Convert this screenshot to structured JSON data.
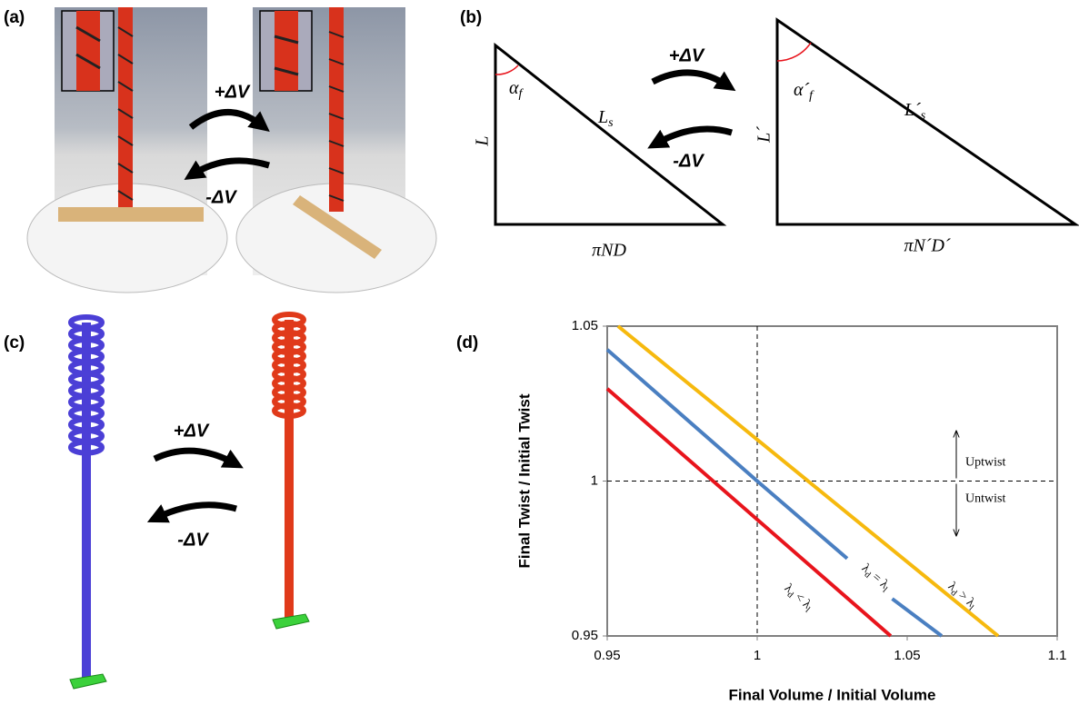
{
  "figure": {
    "panels": [
      "(a)",
      "(b)",
      "(c)",
      "(d)"
    ],
    "plus": "+ΔV",
    "minus": "-ΔV",
    "triangle1": {
      "angle": [
        "α",
        "f"
      ],
      "hyp": [
        "L",
        "s"
      ],
      "side": "L",
      "base": "πND"
    },
    "triangle2": {
      "angle": [
        "α´",
        "f"
      ],
      "hyp": [
        "L´",
        "s"
      ],
      "side": "L´",
      "base": "πN´D´"
    }
  },
  "chart_data": {
    "type": "line",
    "xlabel": "Final Volume / Initial Volume",
    "ylabel": "Final Twist / Initial Twist",
    "xlim": [
      0.95,
      1.1
    ],
    "xticks": [
      0.95,
      1,
      1.05,
      1.1
    ],
    "ylim": [
      0.95,
      1.05
    ],
    "yticks": [
      0.95,
      1,
      1.05
    ],
    "ref_lines": {
      "x": 1,
      "y": 1
    },
    "annotations": [
      "Uptwist",
      "Untwist"
    ],
    "series": [
      {
        "color": "#e8141c",
        "label_parts": [
          "λ",
          "d",
          " < λ",
          "l"
        ],
        "x": [
          0.95,
          1.0445
        ],
        "values": [
          1.0298,
          0.95
        ]
      },
      {
        "color": "#4a7fc1",
        "label_parts": [
          "λ",
          "d",
          " = λ",
          "l"
        ],
        "x": [
          0.95,
          1,
          1.03,
          1.037,
          1.045,
          1.0615
        ],
        "values": [
          1.0424,
          1.0,
          0.975,
          null,
          0.962,
          0.95
        ]
      },
      {
        "color": "#f6b90e",
        "label_parts": [
          "λ",
          "d",
          " > λ",
          "l"
        ],
        "x": [
          0.9536,
          1.0803
        ],
        "values": [
          1.05,
          0.95
        ]
      }
    ]
  }
}
